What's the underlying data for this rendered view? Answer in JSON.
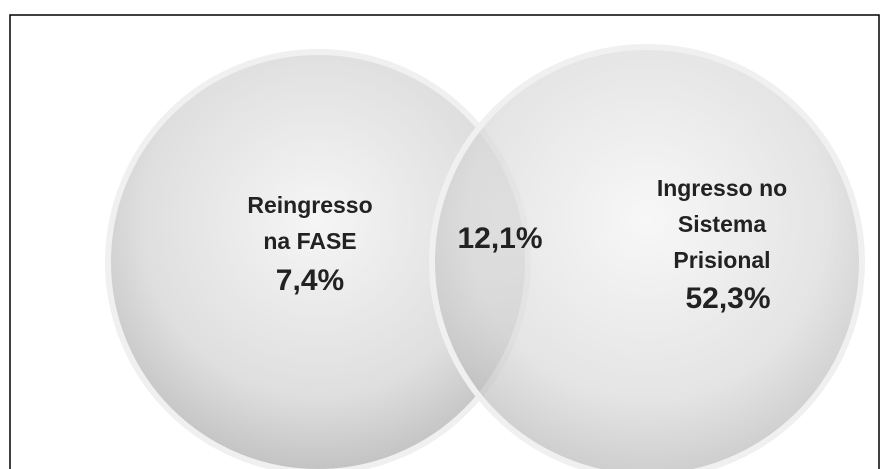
{
  "left_set": {
    "label_lines": [
      "Reingresso",
      "na FASE"
    ],
    "value": "7,4%"
  },
  "intersection": {
    "value": "12,1%"
  },
  "right_set": {
    "label_lines": [
      "Ingresso no",
      "Sistema",
      "Prisional"
    ],
    "value": "52,3%"
  }
}
